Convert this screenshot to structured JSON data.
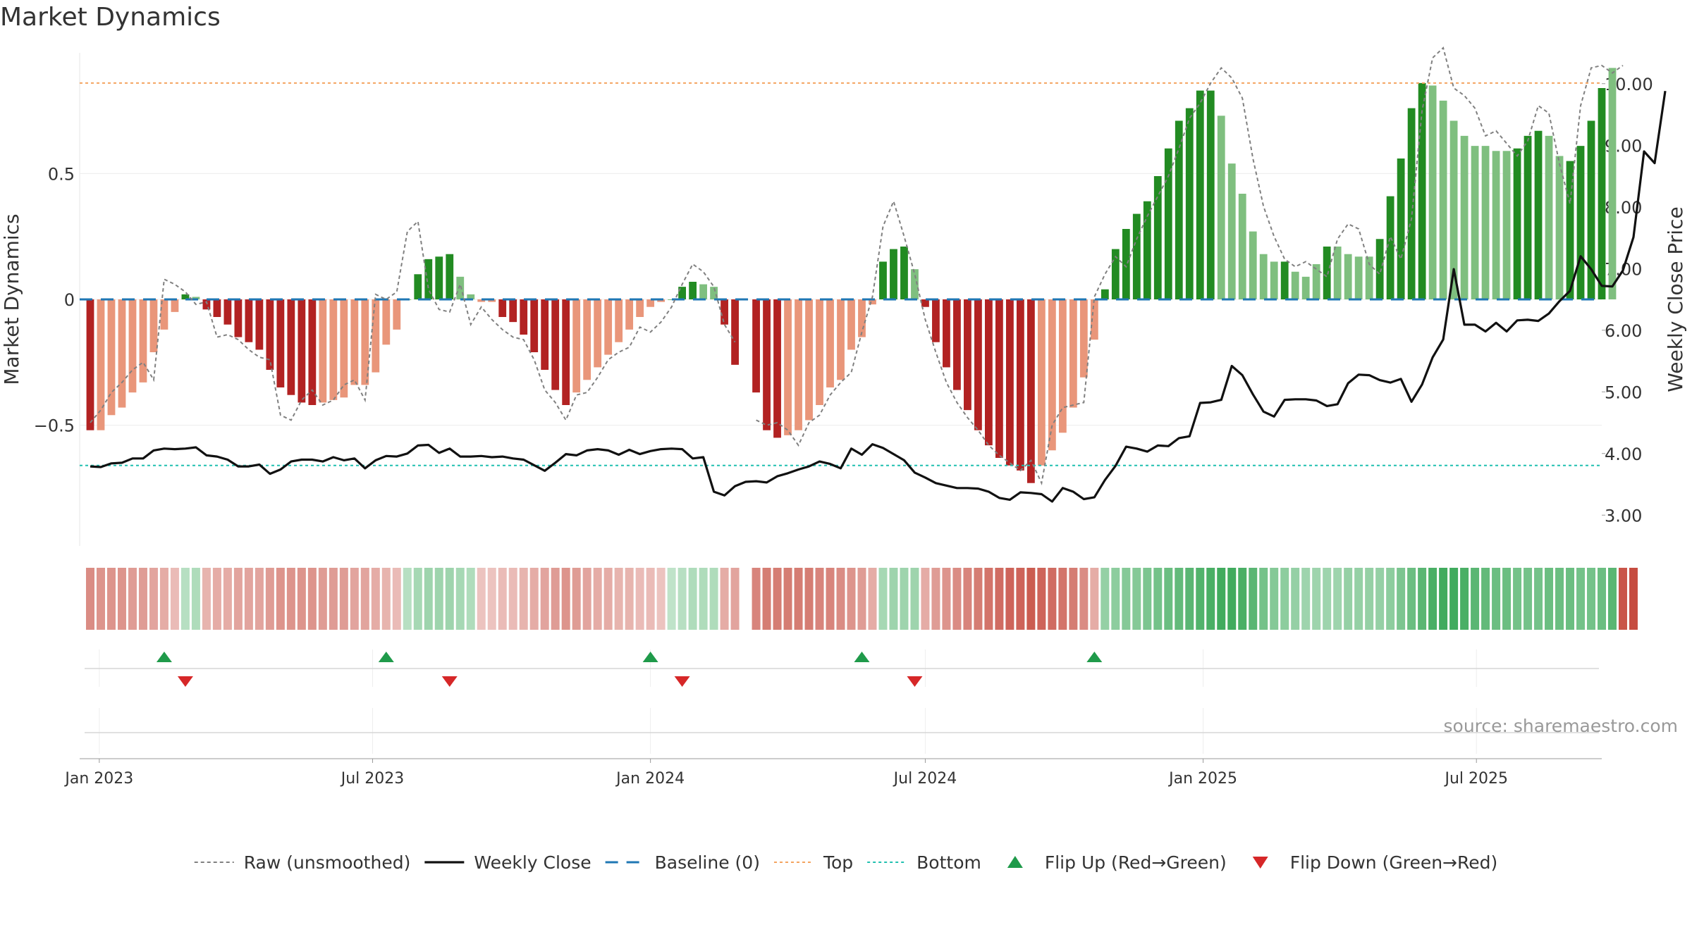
{
  "title": "Market Dynamics",
  "source": "source: sharemaestro.com",
  "colors": {
    "bar_up_strong": "#228b22",
    "bar_up_weak": "#7fbf7f",
    "bar_down_strong": "#b22222",
    "bar_down_weak": "#e9967a",
    "close_line": "#111111",
    "raw_line": "#808080",
    "baseline": "#1f77b4",
    "top": "#f4a460",
    "bottom": "#20c0b0",
    "flip_up": "#1f9a4a",
    "flip_down": "#d62728"
  },
  "chart_data": {
    "type": "bar",
    "title": "Market Dynamics",
    "x_label": "",
    "y_label_left": "Market Dynamics",
    "y_label_right": "Weekly Close Price",
    "x_range": [
      "2022-12-19",
      "2025-09-22"
    ],
    "x_ticks": [
      "Jan 2023",
      "Jul 2023",
      "Jan 2024",
      "Jul 2024",
      "Jan 2025",
      "Jul 2025"
    ],
    "x_tick_dates": [
      "2023-01-01",
      "2023-07-01",
      "2024-01-01",
      "2024-07-01",
      "2025-01-01",
      "2025-07-01"
    ],
    "y_left_ticks": [
      -0.5,
      0,
      0.5
    ],
    "y_left_tick_labels": [
      "−0.5",
      "0",
      "0.5"
    ],
    "y_left_range": [
      -0.98,
      0.98
    ],
    "y_right_ticks": [
      3,
      4,
      5,
      6,
      7,
      8,
      9,
      10
    ],
    "y_right_tick_labels": [
      "3.00",
      "4.00",
      "5.00",
      "6.00",
      "7.00",
      "8.00",
      "9.00",
      "10.00"
    ],
    "y_right_range": [
      2.5,
      10.5
    ],
    "top_level": 0.86,
    "bottom_level": -0.66,
    "baseline": 0,
    "start_date": "2022-12-26",
    "week_step_days": 7,
    "momentum": [
      -0.52,
      -0.52,
      -0.46,
      -0.43,
      -0.37,
      -0.33,
      -0.21,
      -0.12,
      -0.05,
      0.02,
      0.01,
      -0.04,
      -0.07,
      -0.1,
      -0.15,
      -0.17,
      -0.2,
      -0.28,
      -0.35,
      -0.38,
      -0.41,
      -0.42,
      -0.41,
      -0.4,
      -0.39,
      -0.34,
      -0.34,
      -0.29,
      -0.18,
      -0.12,
      0,
      0.1,
      0.16,
      0.17,
      0.18,
      0.09,
      0.02,
      -0.01,
      -0.01,
      -0.07,
      -0.09,
      -0.14,
      -0.21,
      -0.28,
      -0.36,
      -0.42,
      -0.37,
      -0.32,
      -0.27,
      -0.22,
      -0.17,
      -0.12,
      -0.07,
      -0.03,
      -0.01,
      0,
      0.05,
      0.07,
      0.06,
      0.05,
      -0.1,
      -0.26,
      null,
      -0.37,
      -0.52,
      -0.55,
      -0.54,
      -0.52,
      -0.48,
      -0.42,
      -0.35,
      -0.32,
      -0.2,
      -0.15,
      -0.02,
      0.15,
      0.2,
      0.21,
      0.12,
      -0.03,
      -0.17,
      -0.27,
      -0.36,
      -0.44,
      -0.52,
      -0.58,
      -0.63,
      -0.66,
      -0.68,
      -0.73,
      -0.66,
      -0.6,
      -0.53,
      -0.43,
      -0.31,
      -0.16,
      0.04,
      0.2,
      0.28,
      0.34,
      0.39,
      0.49,
      0.6,
      0.71,
      0.76,
      0.83,
      0.83,
      0.73,
      0.54,
      0.42,
      0.27,
      0.18,
      0.15,
      0.15,
      0.11,
      0.09,
      0.14,
      0.21,
      0.21,
      0.18,
      0.17,
      0.17,
      0.24,
      0.41,
      0.56,
      0.76,
      0.86,
      0.85,
      0.79,
      0.71,
      0.65,
      0.61,
      0.61,
      0.59,
      0.59,
      0.6,
      0.65,
      0.67,
      0.65,
      0.57,
      0.55,
      0.61,
      0.71,
      0.84,
      0.92
    ],
    "momentum_strength": [
      "strong",
      "weak",
      "weak",
      "weak",
      "weak",
      "weak",
      "weak",
      "weak",
      "weak",
      "strong",
      "weak",
      "strong",
      "strong",
      "strong",
      "strong",
      "strong",
      "strong",
      "strong",
      "strong",
      "strong",
      "strong",
      "strong",
      "weak",
      "weak",
      "weak",
      "weak",
      "weak",
      "weak",
      "weak",
      "weak",
      "weak",
      "strong",
      "strong",
      "strong",
      "strong",
      "weak",
      "weak",
      "weak",
      "weak",
      "strong",
      "strong",
      "strong",
      "strong",
      "strong",
      "strong",
      "strong",
      "weak",
      "weak",
      "weak",
      "weak",
      "weak",
      "weak",
      "weak",
      "weak",
      "weak",
      "weak",
      "strong",
      "strong",
      "weak",
      "weak",
      "strong",
      "strong",
      null,
      "strong",
      "strong",
      "strong",
      "weak",
      "weak",
      "weak",
      "weak",
      "weak",
      "weak",
      "weak",
      "weak",
      "weak",
      "strong",
      "strong",
      "strong",
      "weak",
      "strong",
      "strong",
      "strong",
      "strong",
      "strong",
      "strong",
      "strong",
      "strong",
      "strong",
      "strong",
      "strong",
      "weak",
      "weak",
      "weak",
      "weak",
      "weak",
      "weak",
      "strong",
      "strong",
      "strong",
      "strong",
      "strong",
      "strong",
      "strong",
      "strong",
      "strong",
      "strong",
      "strong",
      "weak",
      "weak",
      "weak",
      "weak",
      "weak",
      "weak",
      "strong",
      "weak",
      "weak",
      "weak",
      "strong",
      "weak",
      "weak",
      "weak",
      "weak",
      "strong",
      "strong",
      "strong",
      "strong",
      "strong",
      "weak",
      "weak",
      "weak",
      "weak",
      "weak",
      "weak",
      "weak",
      "weak",
      "strong",
      "strong",
      "strong",
      "weak",
      "weak",
      "strong",
      "strong",
      "strong",
      "strong"
    ],
    "raw_series": [
      -0.49,
      -0.44,
      -0.37,
      -0.33,
      -0.28,
      -0.25,
      -0.32,
      0.08,
      0.06,
      0.03,
      -0.02,
      -0.01,
      -0.15,
      -0.14,
      -0.16,
      -0.2,
      -0.23,
      -0.24,
      -0.46,
      -0.48,
      -0.4,
      -0.36,
      -0.42,
      -0.4,
      -0.34,
      -0.32,
      -0.4,
      0.02,
      0.0,
      0.03,
      0.27,
      0.31,
      0.04,
      -0.04,
      -0.05,
      0.06,
      -0.1,
      -0.03,
      -0.08,
      -0.12,
      -0.15,
      -0.16,
      -0.24,
      -0.36,
      -0.41,
      -0.48,
      -0.38,
      -0.37,
      -0.31,
      -0.24,
      -0.21,
      -0.19,
      -0.11,
      -0.13,
      -0.09,
      -0.03,
      0.06,
      0.14,
      0.11,
      0.05,
      -0.1,
      -0.17,
      null,
      -0.48,
      -0.5,
      -0.49,
      -0.52,
      -0.58,
      -0.49,
      -0.46,
      -0.38,
      -0.33,
      -0.29,
      -0.13,
      0.01,
      0.29,
      0.39,
      0.25,
      0.1,
      -0.08,
      -0.21,
      -0.33,
      -0.41,
      -0.47,
      -0.52,
      -0.58,
      -0.62,
      -0.65,
      -0.68,
      -0.64,
      -0.73,
      -0.5,
      -0.43,
      -0.42,
      -0.41,
      0.01,
      0.1,
      0.17,
      0.13,
      0.24,
      0.33,
      0.41,
      0.49,
      0.6,
      0.72,
      0.78,
      0.86,
      0.92,
      0.88,
      0.8,
      0.56,
      0.37,
      0.25,
      0.16,
      0.13,
      0.15,
      0.12,
      0.09,
      0.24,
      0.3,
      0.28,
      0.14,
      0.1,
      0.25,
      0.16,
      0.32,
      0.75,
      0.96,
      1.0,
      0.84,
      0.81,
      0.76,
      0.65,
      0.67,
      0.62,
      0.57,
      0.63,
      0.77,
      0.74,
      0.54,
      0.38,
      0.77,
      0.92,
      0.93,
      0.9,
      0.93
    ],
    "close_series": [
      3.79,
      3.78,
      3.84,
      3.85,
      3.92,
      3.92,
      4.05,
      4.08,
      4.07,
      4.08,
      4.1,
      3.97,
      3.95,
      3.9,
      3.79,
      3.79,
      3.82,
      3.67,
      3.74,
      3.87,
      3.9,
      3.9,
      3.87,
      3.94,
      3.89,
      3.92,
      3.76,
      3.89,
      3.96,
      3.95,
      4.0,
      4.13,
      4.14,
      4.01,
      4.08,
      3.95,
      3.95,
      3.96,
      3.94,
      3.95,
      3.92,
      3.9,
      3.81,
      3.72,
      3.85,
      3.99,
      3.97,
      4.05,
      4.07,
      4.05,
      3.98,
      4.06,
      3.99,
      4.04,
      4.07,
      4.08,
      4.07,
      3.92,
      3.94,
      3.38,
      3.32,
      3.47,
      3.54,
      3.55,
      3.53,
      3.63,
      3.68,
      3.74,
      3.79,
      3.87,
      3.83,
      3.76,
      4.08,
      3.98,
      4.15,
      4.09,
      3.99,
      3.89,
      3.69,
      3.61,
      3.52,
      3.48,
      3.44,
      3.44,
      3.43,
      3.38,
      3.28,
      3.25,
      3.37,
      3.36,
      3.34,
      3.22,
      3.44,
      3.38,
      3.26,
      3.29,
      3.57,
      3.8,
      4.11,
      4.08,
      4.03,
      4.13,
      4.12,
      4.25,
      4.28,
      4.82,
      4.83,
      4.87,
      5.42,
      5.27,
      4.96,
      4.68,
      4.6,
      4.87,
      4.88,
      4.88,
      4.86,
      4.77,
      4.8,
      5.14,
      5.28,
      5.27,
      5.19,
      5.15,
      5.21,
      4.84,
      5.12,
      5.56,
      5.85,
      6.99,
      6.09,
      6.09,
      5.98,
      6.12,
      5.98,
      6.16,
      6.17,
      6.15,
      6.27,
      6.47,
      6.64,
      7.2,
      6.99,
      6.72,
      6.71,
      6.97,
      7.51,
      8.9,
      8.71,
      9.88
    ],
    "regime_strength": [
      0.5,
      0.45,
      0.45,
      0.45,
      0.4,
      0.4,
      0.35,
      0.3,
      0.2,
      0.2,
      0.25,
      0.25,
      0.3,
      0.3,
      0.35,
      0.35,
      0.35,
      0.4,
      0.45,
      0.45,
      0.45,
      0.45,
      0.4,
      0.4,
      0.4,
      0.35,
      0.35,
      0.3,
      0.25,
      0.2,
      0.2,
      0.3,
      0.35,
      0.35,
      0.35,
      0.3,
      0.25,
      0.15,
      0.15,
      0.2,
      0.2,
      0.25,
      0.3,
      0.35,
      0.4,
      0.45,
      0.4,
      0.35,
      0.3,
      0.3,
      0.25,
      0.25,
      0.2,
      0.2,
      0.15,
      0.15,
      0.2,
      0.25,
      0.25,
      0.25,
      0.3,
      0.35,
      null,
      0.55,
      0.6,
      0.6,
      0.6,
      0.6,
      0.6,
      0.55,
      0.55,
      0.5,
      0.45,
      0.4,
      0.3,
      0.3,
      0.35,
      0.35,
      0.35,
      0.3,
      0.4,
      0.45,
      0.5,
      0.55,
      0.6,
      0.65,
      0.7,
      0.75,
      0.75,
      0.8,
      0.75,
      0.7,
      0.65,
      0.6,
      0.5,
      0.3,
      0.4,
      0.45,
      0.5,
      0.5,
      0.55,
      0.6,
      0.65,
      0.7,
      0.75,
      0.8,
      0.85,
      0.9,
      0.9,
      0.85,
      0.75,
      0.6,
      0.5,
      0.45,
      0.4,
      0.35,
      0.35,
      0.35,
      0.35,
      0.4,
      0.4,
      0.4,
      0.4,
      0.45,
      0.55,
      0.65,
      0.75,
      0.85,
      0.9,
      0.9,
      0.85,
      0.75,
      0.7,
      0.65,
      0.65,
      0.6,
      0.6,
      0.6,
      0.65,
      0.65,
      0.65,
      0.6,
      0.6,
      0.65,
      0.75,
      0.85,
      0.9
    ],
    "flips_up": [
      "2023-02-13",
      "2023-07-10",
      "2024-01-01",
      "2024-05-20",
      "2024-10-21"
    ],
    "flips_down": [
      "2023-02-27",
      "2023-08-21",
      "2024-01-22",
      "2024-06-24"
    ],
    "series": [
      {
        "name": "Raw (unsmoothed)",
        "style": "dotted"
      },
      {
        "name": "Weekly Close",
        "style": "solid"
      },
      {
        "name": "Baseline (0)",
        "style": "dashed"
      },
      {
        "name": "Top",
        "style": "dotted"
      },
      {
        "name": "Bottom",
        "style": "dotted"
      },
      {
        "name": "Flip Up (Red→Green)",
        "style": "marker-up"
      },
      {
        "name": "Flip Down (Green→Red)",
        "style": "marker-down"
      }
    ],
    "legend_position": "bottom-center",
    "grid": true
  }
}
